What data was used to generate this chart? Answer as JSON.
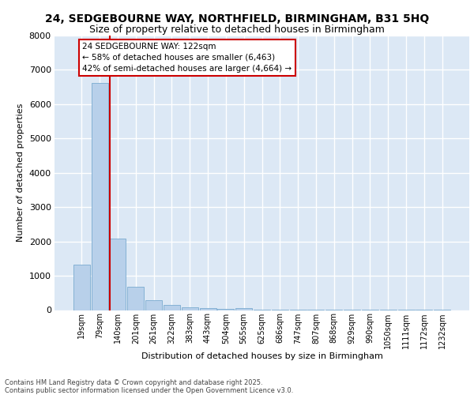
{
  "title_line1": "24, SEDGEBOURNE WAY, NORTHFIELD, BIRMINGHAM, B31 5HQ",
  "title_line2": "Size of property relative to detached houses in Birmingham",
  "xlabel": "Distribution of detached houses by size in Birmingham",
  "ylabel": "Number of detached properties",
  "footer_line1": "Contains HM Land Registry data © Crown copyright and database right 2025.",
  "footer_line2": "Contains public sector information licensed under the Open Government Licence v3.0.",
  "annotation_line1": "24 SEDGEBOURNE WAY: 122sqm",
  "annotation_line2": "← 58% of detached houses are smaller (6,463)",
  "annotation_line3": "42% of semi-detached houses are larger (4,664) →",
  "bar_labels": [
    "19sqm",
    "79sqm",
    "140sqm",
    "201sqm",
    "261sqm",
    "322sqm",
    "383sqm",
    "443sqm",
    "504sqm",
    "565sqm",
    "625sqm",
    "686sqm",
    "747sqm",
    "807sqm",
    "868sqm",
    "929sqm",
    "990sqm",
    "1050sqm",
    "1111sqm",
    "1172sqm",
    "1232sqm"
  ],
  "bar_values": [
    1320,
    6630,
    2090,
    670,
    290,
    140,
    80,
    50,
    40,
    50,
    10,
    5,
    5,
    3,
    3,
    2,
    2,
    1,
    1,
    1,
    1
  ],
  "bar_color": "#b8d0ea",
  "bar_edge_color": "#7aaacf",
  "vline_x": 1.55,
  "vline_color": "#cc0000",
  "background_color": "#dce8f5",
  "grid_color": "#ffffff",
  "ylim_max": 8000,
  "yticks": [
    0,
    1000,
    2000,
    3000,
    4000,
    5000,
    6000,
    7000,
    8000
  ],
  "title_fontsize": 10,
  "subtitle_fontsize": 9,
  "ylabel_fontsize": 8,
  "xlabel_fontsize": 8,
  "tick_fontsize": 7,
  "footer_fontsize": 6,
  "annot_fontsize": 7.5
}
